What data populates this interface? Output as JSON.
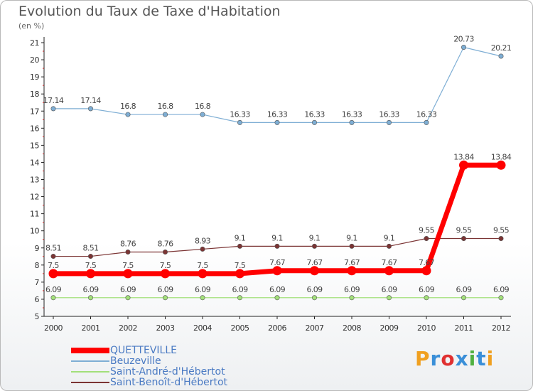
{
  "chart_data": {
    "type": "line",
    "title": "Evolution du Taux de Taxe d'Habitation",
    "subtitle": "(en %)",
    "categories": [
      "2000",
      "2001",
      "2002",
      "2003",
      "2004",
      "2005",
      "2006",
      "2007",
      "2008",
      "2009",
      "2010",
      "2011",
      "2012"
    ],
    "ylim": [
      5,
      21
    ],
    "yticks": [
      "5",
      "6",
      "7",
      "8",
      "9",
      "10",
      "11",
      "12",
      "13",
      "14",
      "15",
      "16",
      "17",
      "18",
      "19",
      "20",
      "21"
    ],
    "grid": false,
    "legend_position": "bottom-left",
    "series": [
      {
        "name": "QUETTEVILLE",
        "color": "#ff0000",
        "values": [
          7.5,
          7.5,
          7.5,
          7.5,
          7.5,
          7.5,
          7.67,
          7.67,
          7.67,
          7.67,
          7.67,
          13.84,
          13.84
        ],
        "labels": [
          "7.5",
          "7.5",
          "7.5",
          "7.5",
          "7.5",
          "7.5",
          "7.67",
          "7.67",
          "7.67",
          "7.67",
          "7.67",
          "13.84",
          "13.84"
        ]
      },
      {
        "name": "Beuzeville",
        "color": "#7eaed4",
        "values": [
          17.14,
          17.14,
          16.8,
          16.8,
          16.8,
          16.33,
          16.33,
          16.33,
          16.33,
          16.33,
          16.33,
          20.73,
          20.21
        ],
        "labels": [
          "17.14",
          "17.14",
          "16.8",
          "16.8",
          "16.8",
          "16.33",
          "16.33",
          "16.33",
          "16.33",
          "16.33",
          "16.33",
          "20.73",
          "20.21"
        ]
      },
      {
        "name": "Saint-André-d'Hébertot",
        "color": "#a3e07a",
        "values": [
          6.09,
          6.09,
          6.09,
          6.09,
          6.09,
          6.09,
          6.09,
          6.09,
          6.09,
          6.09,
          6.09,
          6.09,
          6.09
        ],
        "labels": [
          "6.09",
          "6.09",
          "6.09",
          "6.09",
          "6.09",
          "6.09",
          "6.09",
          "6.09",
          "6.09",
          "6.09",
          "6.09",
          "6.09",
          "6.09"
        ]
      },
      {
        "name": "Saint-Benoît-d'Hébertot",
        "color": "#7b3434",
        "values": [
          8.51,
          8.51,
          8.76,
          8.76,
          8.93,
          9.1,
          9.1,
          9.1,
          9.1,
          9.1,
          9.55,
          9.55,
          9.55
        ],
        "labels": [
          "8.51",
          "8.51",
          "8.76",
          "8.76",
          "8.93",
          "9.1",
          "9.1",
          "9.1",
          "9.1",
          "9.1",
          "9.55",
          "9.55",
          "9.55"
        ]
      }
    ]
  },
  "logo": {
    "text": "Proxiti",
    "letters": [
      "P",
      "r",
      "o",
      "x",
      "i",
      "t",
      "i"
    ],
    "colors": [
      "#f0a020",
      "#3a8fd8",
      "#e03030",
      "#3a8fd8",
      "#50b040",
      "#3a8fd8",
      "#f0a020"
    ]
  }
}
